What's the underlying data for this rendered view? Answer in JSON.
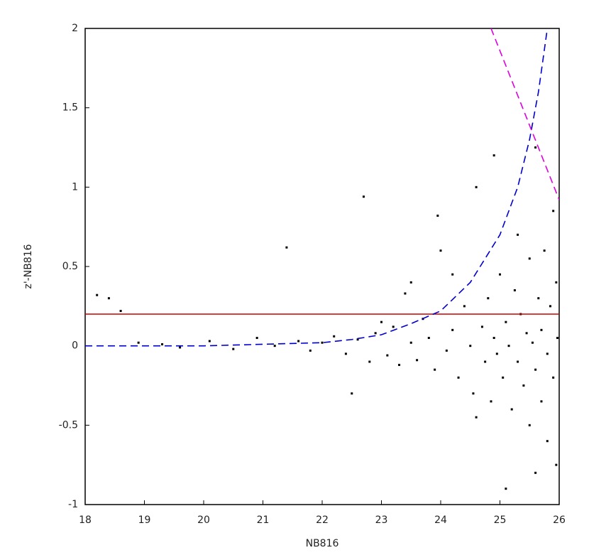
{
  "chart_data": {
    "type": "scatter",
    "x_label": "NB816",
    "y_label": "z'-NB816",
    "xlim": [
      18,
      26
    ],
    "ylim": [
      -1,
      2
    ],
    "xticks": [
      18,
      19,
      20,
      21,
      22,
      23,
      24,
      25,
      26
    ],
    "yticks": [
      -1,
      -0.5,
      0,
      0.5,
      1,
      1.5,
      2
    ],
    "series": [
      {
        "kind": "points",
        "color": "#000000",
        "x": [
          18.2,
          18.4,
          18.6,
          18.9,
          19.3,
          19.6,
          20.1,
          20.5,
          20.9,
          21.2,
          21.4,
          21.6,
          21.8,
          22.0,
          22.2,
          22.4,
          22.6,
          22.7,
          22.8,
          22.9,
          23.0,
          23.1,
          23.2,
          23.3,
          23.4,
          23.5,
          23.6,
          23.7,
          23.8,
          23.9,
          23.95,
          24.0,
          24.1,
          24.2,
          24.3,
          24.4,
          24.5,
          24.55,
          24.6,
          24.7,
          24.75,
          24.8,
          24.85,
          24.9,
          24.95,
          25.0,
          25.05,
          25.1,
          25.15,
          25.2,
          25.25,
          25.3,
          25.35,
          25.4,
          25.45,
          25.5,
          25.5,
          25.55,
          25.6,
          25.6,
          25.65,
          25.7,
          25.7,
          25.75,
          25.8,
          25.8,
          25.85,
          25.9,
          25.9,
          25.95,
          25.95,
          25.97,
          25.1,
          24.9,
          24.6,
          23.5,
          22.5,
          24.2,
          25.3,
          25.6
        ],
        "values": [
          0.32,
          0.3,
          0.22,
          0.02,
          0.01,
          -0.01,
          0.03,
          -0.02,
          0.05,
          0.0,
          0.62,
          0.03,
          -0.03,
          0.02,
          0.06,
          -0.05,
          0.04,
          0.94,
          -0.1,
          0.08,
          0.15,
          -0.06,
          0.12,
          -0.12,
          0.33,
          0.02,
          -0.09,
          0.17,
          0.05,
          -0.15,
          0.82,
          0.6,
          -0.03,
          0.1,
          -0.2,
          0.25,
          0.0,
          -0.3,
          1.0,
          0.12,
          -0.1,
          0.3,
          -0.35,
          0.05,
          -0.05,
          0.45,
          -0.2,
          0.15,
          0.0,
          -0.4,
          0.35,
          -0.1,
          0.2,
          -0.25,
          0.08,
          -0.5,
          0.55,
          0.02,
          1.25,
          -0.15,
          0.3,
          -0.35,
          0.1,
          0.6,
          -0.05,
          -0.6,
          0.25,
          0.85,
          -0.2,
          0.4,
          -0.75,
          0.05,
          -0.9,
          1.2,
          -0.45,
          0.4,
          -0.3,
          0.45,
          0.7,
          -0.8
        ]
      },
      {
        "kind": "line",
        "color": "#cc0000",
        "dash": false,
        "x": [
          18,
          26
        ],
        "values": [
          0.2,
          0.2
        ]
      },
      {
        "kind": "line",
        "color": "#0000cc",
        "dash": true,
        "x": [
          18,
          20,
          21,
          22,
          22.5,
          23,
          23.5,
          24,
          24.5,
          25,
          25.3,
          25.5,
          25.65,
          25.8
        ],
        "values": [
          0,
          0,
          0.01,
          0.02,
          0.04,
          0.07,
          0.14,
          0.22,
          0.4,
          0.7,
          1.0,
          1.3,
          1.6,
          2.0
        ]
      },
      {
        "kind": "line",
        "color": "#dd00dd",
        "dash": true,
        "x": [
          24.85,
          26
        ],
        "values": [
          2,
          0.92
        ]
      }
    ]
  }
}
